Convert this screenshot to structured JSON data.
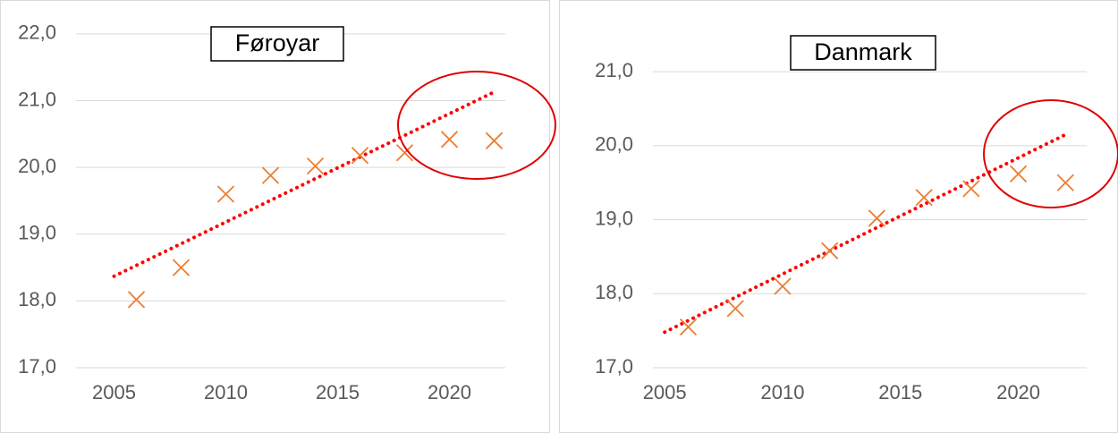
{
  "chart_data": [
    {
      "type": "scatter",
      "title": "Føroyar",
      "series": [
        {
          "color": "#ed7d31",
          "x": [
            2006,
            2008,
            2010,
            2012,
            2014,
            2016,
            2018,
            2020,
            2022
          ],
          "values": [
            18.02,
            18.5,
            19.6,
            19.88,
            20.02,
            20.18,
            20.22,
            20.42,
            20.4
          ]
        }
      ],
      "trendline": {
        "color": "#ff0000",
        "x": [
          2005,
          2022
        ],
        "values": [
          18.37,
          21.13
        ]
      },
      "xlim": [
        2003.3,
        2022.5
      ],
      "xticks": [
        2005,
        2010,
        2015,
        2020
      ],
      "ylim": [
        17,
        22.2
      ],
      "yticks": [
        {
          "value": 17,
          "label": "17,0"
        },
        {
          "value": 18,
          "label": "18,0"
        },
        {
          "value": 19,
          "label": "19,0"
        },
        {
          "value": 20,
          "label": "20,0"
        },
        {
          "value": 21,
          "label": "21,0"
        },
        {
          "value": 22,
          "label": "22,0"
        }
      ],
      "grid": true
    },
    {
      "type": "scatter",
      "title": "Danmark",
      "series": [
        {
          "color": "#ed7d31",
          "x": [
            2006,
            2008,
            2010,
            2012,
            2014,
            2016,
            2018,
            2020,
            2022
          ],
          "values": [
            17.55,
            17.8,
            18.1,
            18.58,
            19.02,
            19.3,
            19.42,
            19.62,
            19.5
          ]
        }
      ],
      "trendline": {
        "color": "#ff0000",
        "x": [
          2005,
          2022
        ],
        "values": [
          17.48,
          20.15
        ]
      },
      "xlim": [
        2004.5,
        2022.9
      ],
      "xticks": [
        2005,
        2010,
        2015,
        2020
      ],
      "ylim": [
        17,
        21.8
      ],
      "yticks": [
        {
          "value": 17,
          "label": "17,0"
        },
        {
          "value": 18,
          "label": "18,0"
        },
        {
          "value": 19,
          "label": "19,0"
        },
        {
          "value": 20,
          "label": "20,0"
        },
        {
          "value": 21,
          "label": "21,0"
        }
      ],
      "grid": true
    }
  ]
}
